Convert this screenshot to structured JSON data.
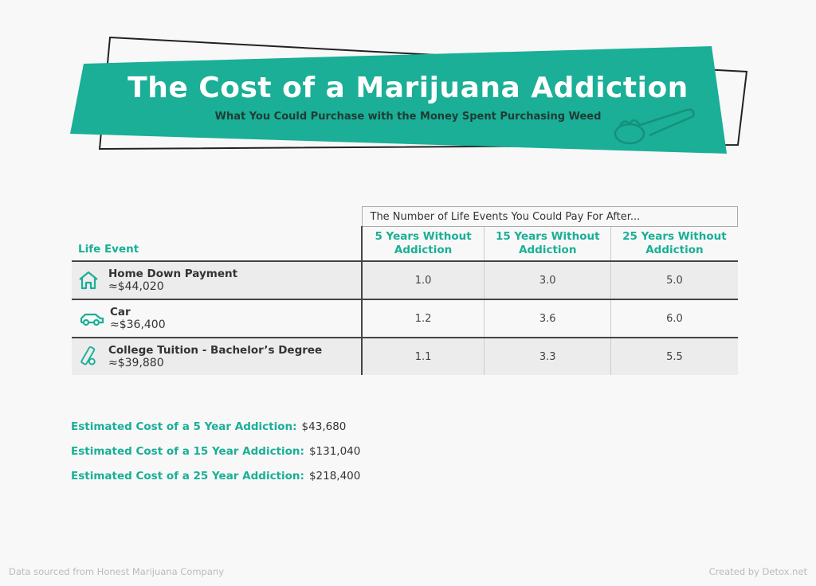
{
  "header": {
    "title": "The Cost of a Marijuana Addiction",
    "subtitle": "What You Could Purchase with the Money Spent Purchasing Weed",
    "accent": "#1aaf96"
  },
  "table": {
    "group_header": "The Number of Life Events You Could Pay For After...",
    "first_col_header": "Life Event",
    "columns": [
      "5 Years Without Addiction",
      "15 Years Without Addiction",
      "25 Years Without Addiction"
    ],
    "rows": [
      {
        "icon": "house-icon",
        "name": "Home Down Payment",
        "cost": "≈$44,020",
        "values": [
          "1.0",
          "3.0",
          "5.0"
        ]
      },
      {
        "icon": "car-icon",
        "name": "Car",
        "cost": "≈$36,400",
        "values": [
          "1.2",
          "3.6",
          "6.0"
        ]
      },
      {
        "icon": "diploma-icon",
        "name": "College Tuition - Bachelor’s Degree",
        "cost": "≈$39,880",
        "values": [
          "1.1",
          "3.3",
          "5.5"
        ]
      }
    ]
  },
  "estimates": [
    {
      "label": "Estimated Cost of a 5 Year Addiction:",
      "value": "$43,680"
    },
    {
      "label": "Estimated Cost of a 15 Year Addiction:",
      "value": "$131,040"
    },
    {
      "label": "Estimated Cost of a 25 Year Addiction:",
      "value": "$218,400"
    }
  ],
  "footer": {
    "source": "Data sourced from Honest Marijuana Company",
    "credit": "Created by Detox.net"
  }
}
